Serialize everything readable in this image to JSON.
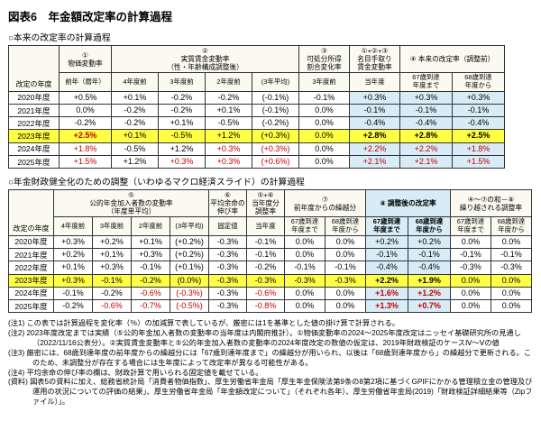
{
  "page": {
    "title": "図表6　年金額改定率の計算過程"
  },
  "colors": {
    "highlight_row": "#ffff43",
    "emphasis_col": "#d7ecf6",
    "forecast_text": "#c00000",
    "header_bg": "#fbfaf0"
  },
  "table1": {
    "section_label": "○本来の改定率の計算過程",
    "headers": {
      "year": "改定の年度",
      "g1": "①\n物価変動率",
      "g2": "②\n実質賃金変動率\n（性・年齢構成調整後）",
      "g3": "③\n可処分所得\n割合変化率",
      "g4": "①+②+③\n名目手取り\n賃金変動率",
      "g5": "④ 本来の改定率（調整前）",
      "s1": "前年（暦年）",
      "s2a": "4年度前",
      "s2b": "3年度前",
      "s2c": "2年度前",
      "s2d": "(3年平均)",
      "s3": "3年度前",
      "s4": "当年度",
      "s5a": "67歳到達\n年度まで",
      "s5b": "68歳到達\n年度から"
    },
    "rows": [
      {
        "year": "2020年度",
        "cells": [
          "+0.5%",
          "+0.1%",
          "-0.2%",
          "-0.2%",
          "(-0.1%)",
          "-0.1%",
          "+0.3%",
          "+0.3%",
          "+0.3%"
        ]
      },
      {
        "year": "2021年度",
        "cells": [
          "0.0%",
          "-0.2%",
          "-0.2%",
          "+0.1%",
          "(-0.1%)",
          "0.0%",
          "-0.1%",
          "-0.1%",
          "-0.1%"
        ]
      },
      {
        "year": "2022年度",
        "cells": [
          "-0.2%",
          "-0.2%",
          "+0.1%",
          "-0.5%",
          "(-0.2%)",
          "0.0%",
          "-0.4%",
          "-0.4%",
          "-0.4%"
        ]
      },
      {
        "year": "2023年度",
        "highlight": true,
        "cells": [
          "+2.5%",
          "+0.1%",
          "-0.5%",
          "+1.2%",
          "(+0.3%)",
          "0.0%",
          "+2.8%",
          "+2.8%",
          "+2.5%"
        ],
        "styles": {
          "0": "red bold",
          "6": "bold",
          "7": "bold",
          "8": "bold"
        }
      },
      {
        "year": "2024年度",
        "cells": [
          "+1.8%",
          "-0.5%",
          "+1.2%",
          "+0.3%",
          "(+0.3%)",
          "0.0%",
          "+2.2%",
          "+2.2%",
          "+1.8%"
        ],
        "styles": {
          "0": "red",
          "3": "red",
          "4": "red",
          "6": "red",
          "7": "red",
          "8": "red"
        }
      },
      {
        "year": "2025年度",
        "cells": [
          "+1.5%",
          "+1.2%",
          "+0.3%",
          "+0.3%",
          "(+0.6%)",
          "0.0%",
          "+2.1%",
          "+2.1%",
          "+1.5%"
        ],
        "styles": {
          "0": "red",
          "2": "red",
          "3": "red",
          "4": "red",
          "6": "red",
          "7": "red",
          "8": "red"
        }
      }
    ]
  },
  "table2": {
    "section_label": "○年金財政健全化のための調整（いわゆるマクロ経済スライド）の計算過程",
    "headers": {
      "year": "改定の年度",
      "g1": "⑤\n公的年金加入者数の変動率\n（年度単平均）",
      "g2": "⑥\n平均余命の\n伸び率",
      "g3": "⑤+⑥\n当年度分\n調整率",
      "g4": "⑦\n前年度からの繰越分",
      "g5": "⑧ 調整後の改定率",
      "g6": "④～⑦の和－⑧\n繰り越される調整率",
      "s1a": "4年度前",
      "s1b": "3年度前",
      "s1c": "2年度前",
      "s1d": "(3年平均)",
      "s2": "固定値",
      "s3": "当年度",
      "s4a": "67歳到達\n年度まで",
      "s4b": "68歳到達\n年度から",
      "s5a": "67歳到達\n年度まで",
      "s5b": "68歳到達\n年度から",
      "s6a": "67歳到達\n年度まで",
      "s6b": "68歳到達\n年度から"
    },
    "rows": [
      {
        "year": "2020年度",
        "cells": [
          "+0.3%",
          "+0.2%",
          "+0.1%",
          "(+0.2%)",
          "-0.3%",
          "-0.1%",
          "0.0%",
          "0.0%",
          "+0.2%",
          "+0.2%",
          "0.0%",
          "0.0%"
        ]
      },
      {
        "year": "2021年度",
        "cells": [
          "+0.2%",
          "+0.1%",
          "+0.3%",
          "(+0.2%)",
          "-0.3%",
          "-0.1%",
          "0.0%",
          "0.0%",
          "-0.1%",
          "-0.1%",
          "-0.1%",
          "-0.1%"
        ]
      },
      {
        "year": "2022年度",
        "cells": [
          "+0.1%",
          "+0.3%",
          "-0.1%",
          "(+0.1%)",
          "-0.3%",
          "-0.2%",
          "-0.1%",
          "-0.1%",
          "-0.4%",
          "-0.4%",
          "-0.3%",
          "-0.3%"
        ]
      },
      {
        "year": "2023年度",
        "highlight": true,
        "cells": [
          "+0.3%",
          "-0.1%",
          "-0.2%",
          "(0.0%)",
          "-0.3%",
          "-0.3%",
          "-0.3%",
          "-0.3%",
          "+2.2%",
          "+1.9%",
          "0.0%",
          "0.0%"
        ],
        "styles": {
          "8": "bold",
          "9": "bold"
        }
      },
      {
        "year": "2024年度",
        "cells": [
          "-0.1%",
          "-0.2%",
          "-0.6%",
          "(-0.3%)",
          "-0.3%",
          "-0.6%",
          "0.0%",
          "0.0%",
          "+1.6%",
          "+1.2%",
          "0.0%",
          "0.0%"
        ],
        "styles": {
          "2": "red",
          "3": "red",
          "5": "red",
          "8": "red bold",
          "9": "red bold"
        }
      },
      {
        "year": "2025年度",
        "cells": [
          "-0.2%",
          "-0.6%",
          "-0.7%",
          "(-0.5%)",
          "-0.3%",
          "-0.8%",
          "0.0%",
          "0.0%",
          "+1.3%",
          "+0.7%",
          "0.0%",
          "0.0%"
        ],
        "styles": {
          "1": "red",
          "2": "red",
          "3": "red",
          "5": "red",
          "8": "red bold",
          "9": "red bold"
        }
      }
    ]
  },
  "notes": [
    "(注1) この表では計算過程を変化率（％）の加減算で表しているが、厳密には1を基準とした値の掛け算で計算される。",
    "(注2) 2023年度改定までは実績（⑤公的年金加入者数の変動率の当年度は内閣府推計）。①物価変動率の2024～2025年度改定はニッセイ基礎研究所の見通し（2022/11/16公表分）。②実質賃金変動率と⑤公的年金加入者数の変動率の2024年度改定の数値の仮定は、2019年財政検証のケースⅣ～Ⅴの値",
    "(注3) 厳密には、68歳到達年度の前年度からの繰越分には「67歳到達年度まで」の繰越分が用いられ、以後は「68歳到達年度から」の繰越分で更新される。このため、未調整分が存在する場合には生年度によって改定率が異なる可能性がある。",
    "(注4) 平均余命の伸び率の欄は、財政計算で用いられる固定値を載せている。",
    "(資料) 図表5の資料に加え、総務省統計局「消費者物価指数」、厚生労働省年金局「厚生年金保険法第9条の8第2項に基づくGPIFにかかる管理積立金の管理及び運用の状況についての評価の結果」、厚生労働省年金局「年金額改定について」（それぞれ各年）、厚生労働省年金局(2019)「財政検証詳細結果等（Zipファイル）」。"
  ]
}
